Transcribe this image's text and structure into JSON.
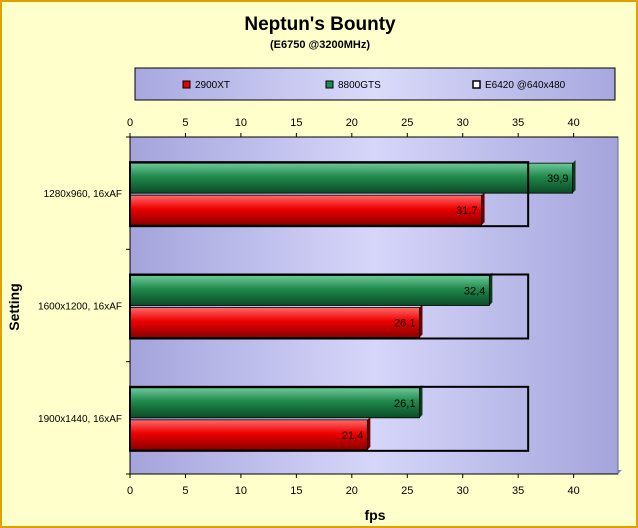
{
  "chart_data": {
    "type": "bar",
    "orientation": "horizontal",
    "title": "Neptun's Bounty",
    "subtitle": "(E6750 @3200MHz)",
    "xlabel": "fps",
    "ylabel": "Setting",
    "xlim": [
      0,
      44
    ],
    "xticks": [
      "0",
      "5",
      "10",
      "15",
      "20",
      "25",
      "30",
      "35",
      "40"
    ],
    "categories": [
      "1280x960, 16xAF",
      "1600x1200, 16xAF",
      "1900x1440, 16xAF"
    ],
    "series": [
      {
        "name": "2900XT",
        "values": [
          31.7,
          26.1,
          21.4
        ],
        "labels": [
          "31,7",
          "26,1",
          "21,4"
        ],
        "color": "#e00000"
      },
      {
        "name": "8800GTS",
        "values": [
          39.9,
          32.4,
          26.1
        ],
        "labels": [
          "39,9",
          "32,4",
          "26,1"
        ],
        "color": "#1f8a4c"
      },
      {
        "name": "E6420 @640x480",
        "values": [
          35.9,
          35.9,
          35.9
        ],
        "color": "none"
      }
    ],
    "legend_position": "top",
    "grid": false,
    "plot_background": "#c4c4f0"
  }
}
